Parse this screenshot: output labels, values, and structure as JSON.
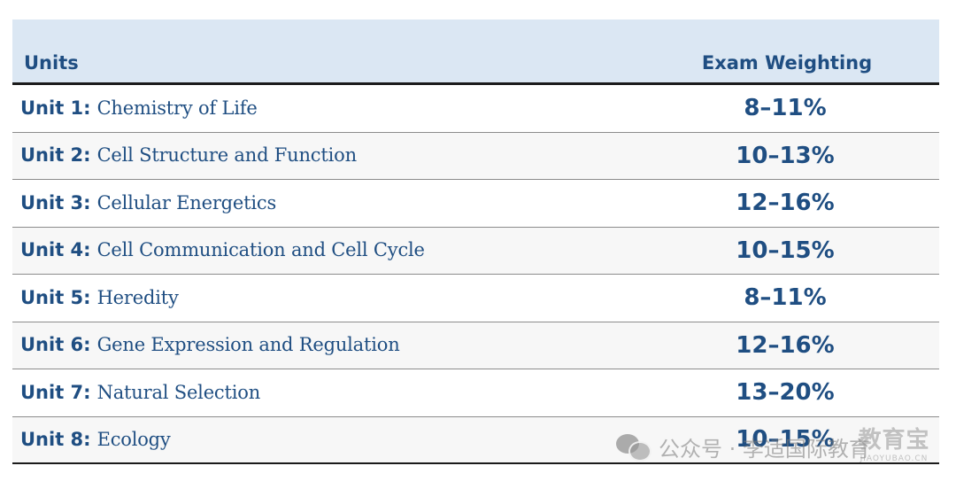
{
  "table": {
    "header": {
      "units": "Units",
      "weighting": "Exam Weighting"
    },
    "rows": [
      {
        "unit": "Unit 1:",
        "title": "Chemistry of Life",
        "weighting": "8–11%"
      },
      {
        "unit": "Unit 2:",
        "title": "Cell Structure and Function",
        "weighting": "10–13%"
      },
      {
        "unit": "Unit 3:",
        "title": "Cellular Energetics",
        "weighting": "12–16%"
      },
      {
        "unit": "Unit 4:",
        "title": "Cell Communication and Cell Cycle",
        "weighting": "10–15%"
      },
      {
        "unit": "Unit 5:",
        "title": "Heredity",
        "weighting": "8–11%"
      },
      {
        "unit": "Unit 6:",
        "title": "Gene Expression and Regulation",
        "weighting": "12–16%"
      },
      {
        "unit": "Unit 7:",
        "title": "Natural Selection",
        "weighting": "13–20%"
      },
      {
        "unit": "Unit 8:",
        "title": "Ecology",
        "weighting": "10–15%"
      }
    ]
  },
  "watermark": {
    "icon": "wechat-icon",
    "text": "公众号 · 李适国际教育",
    "brand": "教育宝",
    "brand_sub": "JIAOYUBAO.CN"
  },
  "colors": {
    "text_blue": "#1f4e82",
    "header_bg": "#dbe7f3"
  }
}
